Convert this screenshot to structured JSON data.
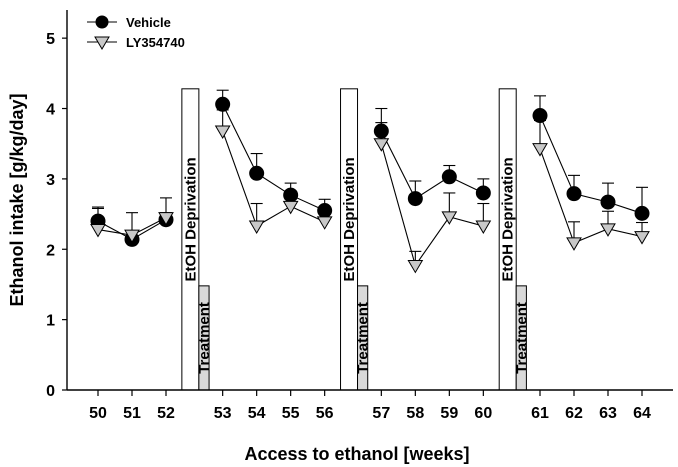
{
  "chart_data": {
    "type": "line",
    "title": "",
    "xlabel": "Access to ethanol [weeks]",
    "ylabel": "Ethanol intake [g/kg/day]",
    "ylim": [
      0,
      5.4
    ],
    "yticks": [
      "0",
      "1",
      "2",
      "3",
      "4",
      "5"
    ],
    "x_tick_labels": [
      "50",
      "51",
      "52",
      "53",
      "54",
      "55",
      "56",
      "57",
      "58",
      "59",
      "60",
      "61",
      "62",
      "63",
      "64"
    ],
    "segments": [
      [
        "50",
        "51",
        "52"
      ],
      [
        "53",
        "54",
        "55",
        "56"
      ],
      [
        "57",
        "58",
        "59",
        "60"
      ],
      [
        "61",
        "62",
        "63",
        "64"
      ]
    ],
    "series": [
      {
        "name": "Vehicle",
        "marker": "circle-filled",
        "color": "#000000",
        "values": [
          2.4,
          2.14,
          2.42,
          4.06,
          3.08,
          2.77,
          2.55,
          3.68,
          2.72,
          3.03,
          2.8,
          3.9,
          2.79,
          2.67,
          2.51
        ],
        "error": [
          0.2,
          0.1,
          0.1,
          0.2,
          0.28,
          0.17,
          0.16,
          0.32,
          0.25,
          0.16,
          0.2,
          0.28,
          0.26,
          0.27,
          0.37
        ]
      },
      {
        "name": "LY354740",
        "marker": "triangle-down-gray",
        "color": "#c8c8c8",
        "values": [
          2.28,
          2.2,
          2.45,
          3.68,
          2.33,
          2.61,
          2.39,
          3.5,
          1.77,
          2.46,
          2.33,
          3.43,
          2.09,
          2.29,
          2.18
        ],
        "error": [
          0.3,
          0.32,
          0.28,
          0.3,
          0.32,
          0.2,
          0.18,
          0.3,
          0.2,
          0.34,
          0.32,
          0.4,
          0.3,
          0.25,
          0.2
        ]
      }
    ],
    "annotations": [
      {
        "label": "EtOH Deprivation",
        "between": [
          "52",
          "53"
        ]
      },
      {
        "label": "Treatment",
        "between": [
          "52",
          "53"
        ]
      },
      {
        "label": "EtOH Deprivation",
        "between": [
          "56",
          "57"
        ]
      },
      {
        "label": "Treatment",
        "between": [
          "56",
          "57"
        ]
      },
      {
        "label": "EtOH Deprivation",
        "between": [
          "60",
          "61"
        ]
      },
      {
        "label": "Treatment",
        "between": [
          "60",
          "61"
        ]
      }
    ],
    "legend_position": "top-left"
  }
}
